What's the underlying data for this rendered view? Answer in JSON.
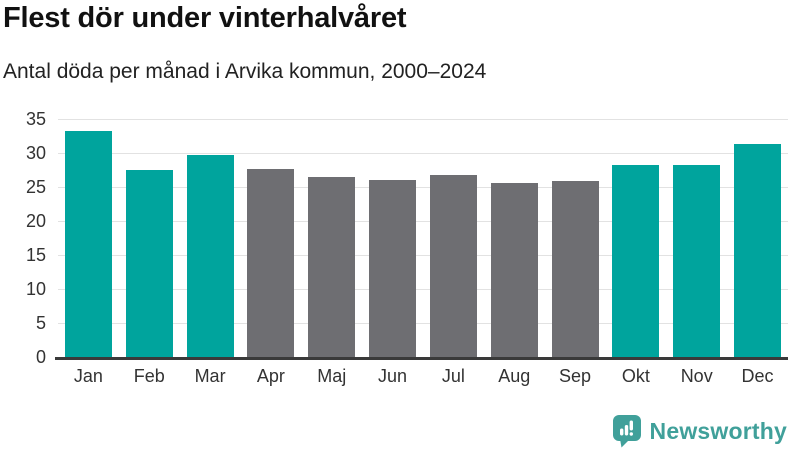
{
  "header": {
    "title": "Flest dör under vinterhalvåret",
    "subtitle": "Antal döda per månad i Arvika kommun, 2000–2024"
  },
  "chart_data": {
    "type": "bar",
    "title": "Flest dör under vinterhalvåret",
    "subtitle": "Antal döda per månad i Arvika kommun, 2000–2024",
    "categories": [
      "Jan",
      "Feb",
      "Mar",
      "Apr",
      "Maj",
      "Jun",
      "Jul",
      "Aug",
      "Sep",
      "Okt",
      "Nov",
      "Dec"
    ],
    "values": [
      33.2,
      27.5,
      29.7,
      27.7,
      26.4,
      26.1,
      26.7,
      25.6,
      25.9,
      28.2,
      28.3,
      31.3
    ],
    "highlighted": [
      true,
      true,
      true,
      false,
      false,
      false,
      false,
      false,
      false,
      true,
      true,
      true
    ],
    "xlabel": "",
    "ylabel": "",
    "ylim": [
      0,
      35
    ],
    "yticks": [
      0,
      5,
      10,
      15,
      20,
      25,
      30,
      35
    ],
    "grid": true,
    "legend_position": "none",
    "colors": {
      "highlight": "#00a49d",
      "base": "#6e6e72",
      "gridline": "#e2e2e2",
      "axis_line": "#3a3a3a",
      "tick_label": "#333333"
    }
  },
  "footer": {
    "brand": "Newsworthy",
    "brand_color": "#40a09a",
    "logo_icon": "newsworthy-speech-bubble-chart-icon"
  }
}
